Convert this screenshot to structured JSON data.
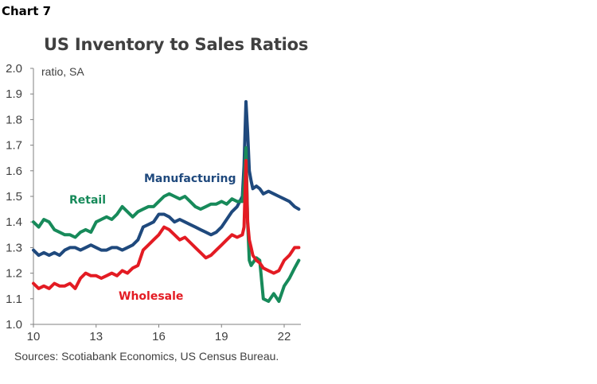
{
  "header": {
    "chart_label": "Chart 7",
    "title": "US Inventory to Sales Ratios"
  },
  "footer": {
    "source": "Sources: Scotiabank Economics, US Census Bureau."
  },
  "chart_data": {
    "type": "line",
    "title": "US Inventory to Sales Ratios",
    "unit_label": "ratio, SA",
    "xlabel": "",
    "ylabel": "",
    "xlim": [
      2010,
      2022.8
    ],
    "ylim": [
      1.0,
      2.0
    ],
    "x_ticks": [
      {
        "value": 2010,
        "label": "10"
      },
      {
        "value": 2013,
        "label": "13"
      },
      {
        "value": 2016,
        "label": "16"
      },
      {
        "value": 2019,
        "label": "19"
      },
      {
        "value": 2022,
        "label": "22"
      }
    ],
    "y_ticks": [
      {
        "value": 1.0,
        "label": "1.0"
      },
      {
        "value": 1.1,
        "label": "1.1"
      },
      {
        "value": 1.2,
        "label": "1.2"
      },
      {
        "value": 1.3,
        "label": "1.3"
      },
      {
        "value": 1.4,
        "label": "1.4"
      },
      {
        "value": 1.5,
        "label": "1.5"
      },
      {
        "value": 1.6,
        "label": "1.6"
      },
      {
        "value": 1.7,
        "label": "1.7"
      },
      {
        "value": 1.8,
        "label": "1.8"
      },
      {
        "value": 1.9,
        "label": "1.9"
      },
      {
        "value": 2.0,
        "label": "2.0"
      }
    ],
    "grid": false,
    "legend": "inline labels",
    "series": [
      {
        "name": "Manufacturing",
        "color": "#1f497d",
        "x": [
          2010,
          2010.25,
          2010.5,
          2010.75,
          2011,
          2011.25,
          2011.5,
          2011.75,
          2012,
          2012.25,
          2012.5,
          2012.75,
          2013,
          2013.25,
          2013.5,
          2013.75,
          2014,
          2014.25,
          2014.5,
          2014.75,
          2015,
          2015.25,
          2015.5,
          2015.75,
          2016,
          2016.25,
          2016.5,
          2016.75,
          2017,
          2017.25,
          2017.5,
          2017.75,
          2018,
          2018.25,
          2018.5,
          2018.75,
          2019,
          2019.25,
          2019.5,
          2019.75,
          2020,
          2020.08,
          2020.17,
          2020.25,
          2020.33,
          2020.42,
          2020.5,
          2020.67,
          2020.83,
          2021,
          2021.25,
          2021.5,
          2021.75,
          2022,
          2022.25,
          2022.5,
          2022.7
        ],
        "y": [
          1.29,
          1.27,
          1.28,
          1.27,
          1.28,
          1.27,
          1.29,
          1.3,
          1.3,
          1.29,
          1.3,
          1.31,
          1.3,
          1.29,
          1.29,
          1.3,
          1.3,
          1.29,
          1.3,
          1.31,
          1.33,
          1.38,
          1.39,
          1.4,
          1.43,
          1.43,
          1.42,
          1.4,
          1.41,
          1.4,
          1.39,
          1.38,
          1.37,
          1.36,
          1.35,
          1.36,
          1.38,
          1.41,
          1.44,
          1.46,
          1.5,
          1.62,
          1.87,
          1.75,
          1.6,
          1.56,
          1.53,
          1.54,
          1.53,
          1.51,
          1.52,
          1.51,
          1.5,
          1.49,
          1.48,
          1.46,
          1.45
        ]
      },
      {
        "name": "Retail",
        "color": "#178a5a",
        "x": [
          2010,
          2010.25,
          2010.5,
          2010.75,
          2011,
          2011.25,
          2011.5,
          2011.75,
          2012,
          2012.25,
          2012.5,
          2012.75,
          2013,
          2013.25,
          2013.5,
          2013.75,
          2014,
          2014.25,
          2014.5,
          2014.75,
          2015,
          2015.25,
          2015.5,
          2015.75,
          2016,
          2016.25,
          2016.5,
          2016.75,
          2017,
          2017.25,
          2017.5,
          2017.75,
          2018,
          2018.25,
          2018.5,
          2018.75,
          2019,
          2019.25,
          2019.5,
          2019.75,
          2020,
          2020.08,
          2020.17,
          2020.25,
          2020.33,
          2020.42,
          2020.5,
          2020.67,
          2020.83,
          2021,
          2021.25,
          2021.5,
          2021.75,
          2022,
          2022.25,
          2022.5,
          2022.7
        ],
        "y": [
          1.4,
          1.38,
          1.41,
          1.4,
          1.37,
          1.36,
          1.35,
          1.35,
          1.34,
          1.36,
          1.37,
          1.36,
          1.4,
          1.41,
          1.42,
          1.41,
          1.43,
          1.46,
          1.44,
          1.42,
          1.44,
          1.45,
          1.46,
          1.46,
          1.48,
          1.5,
          1.51,
          1.5,
          1.49,
          1.5,
          1.48,
          1.46,
          1.45,
          1.46,
          1.47,
          1.47,
          1.48,
          1.47,
          1.49,
          1.48,
          1.48,
          1.55,
          1.69,
          1.4,
          1.25,
          1.23,
          1.24,
          1.26,
          1.25,
          1.1,
          1.09,
          1.12,
          1.09,
          1.15,
          1.18,
          1.22,
          1.25
        ]
      },
      {
        "name": "Wholesale",
        "color": "#e31b23",
        "x": [
          2010,
          2010.25,
          2010.5,
          2010.75,
          2011,
          2011.25,
          2011.5,
          2011.75,
          2012,
          2012.25,
          2012.5,
          2012.75,
          2013,
          2013.25,
          2013.5,
          2013.75,
          2014,
          2014.25,
          2014.5,
          2014.75,
          2015,
          2015.25,
          2015.5,
          2015.75,
          2016,
          2016.25,
          2016.5,
          2016.75,
          2017,
          2017.25,
          2017.5,
          2017.75,
          2018,
          2018.25,
          2018.5,
          2018.75,
          2019,
          2019.25,
          2019.5,
          2019.75,
          2020,
          2020.08,
          2020.17,
          2020.25,
          2020.33,
          2020.42,
          2020.5,
          2020.67,
          2020.83,
          2021,
          2021.25,
          2021.5,
          2021.75,
          2022,
          2022.25,
          2022.5,
          2022.7
        ],
        "y": [
          1.16,
          1.14,
          1.15,
          1.14,
          1.16,
          1.15,
          1.15,
          1.16,
          1.14,
          1.18,
          1.2,
          1.19,
          1.19,
          1.18,
          1.19,
          1.2,
          1.19,
          1.21,
          1.2,
          1.22,
          1.23,
          1.29,
          1.31,
          1.33,
          1.35,
          1.38,
          1.37,
          1.35,
          1.33,
          1.34,
          1.32,
          1.3,
          1.28,
          1.26,
          1.27,
          1.29,
          1.31,
          1.33,
          1.35,
          1.34,
          1.35,
          1.38,
          1.64,
          1.4,
          1.33,
          1.3,
          1.27,
          1.25,
          1.24,
          1.22,
          1.21,
          1.2,
          1.21,
          1.25,
          1.27,
          1.3,
          1.3
        ]
      }
    ]
  }
}
